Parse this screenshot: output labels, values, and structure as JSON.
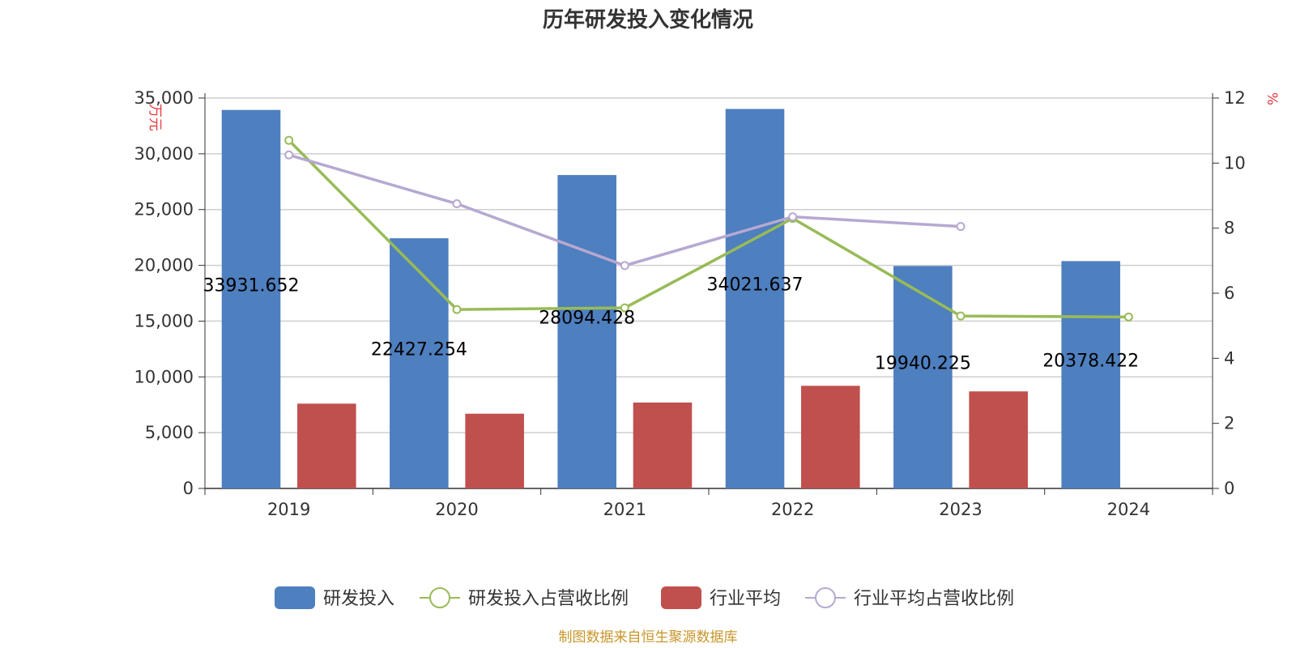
{
  "chart_data": {
    "type": "bar",
    "title": "历年研发投入变化情况",
    "categories": [
      "2019",
      "2020",
      "2021",
      "2022",
      "2023",
      "2024"
    ],
    "y_left": {
      "unit": "万元",
      "min": 0,
      "max": 35000,
      "ticks": [
        "0",
        "5,000",
        "10,000",
        "15,000",
        "20,000",
        "25,000",
        "30,000",
        "35,000"
      ]
    },
    "y_right": {
      "unit": "%",
      "min": 0,
      "max": 12,
      "ticks": [
        "0",
        "2",
        "4",
        "6",
        "8",
        "10",
        "12"
      ]
    },
    "series": [
      {
        "name": "研发投入",
        "kind": "bar",
        "axis": "left",
        "color": "#4e7fbf",
        "values": [
          33931.652,
          22427.254,
          28094.428,
          34021.637,
          19940.225,
          20378.422
        ],
        "labels": [
          "33931.652",
          "22427.254",
          "28094.428",
          "34021.637",
          "19940.225",
          "20378.422"
        ]
      },
      {
        "name": "研发投入占营收比例",
        "kind": "line",
        "axis": "right",
        "color": "#98bb57",
        "values": [
          10.7,
          5.5,
          5.55,
          8.3,
          5.3,
          5.27
        ]
      },
      {
        "name": "行业平均",
        "kind": "bar",
        "axis": "left",
        "color": "#c0504d",
        "values": [
          7600,
          6700,
          7700,
          9200,
          8700,
          null
        ]
      },
      {
        "name": "行业平均占营收比例",
        "kind": "line",
        "axis": "right",
        "color": "#b7a8d1",
        "values": [
          10.25,
          8.75,
          6.85,
          8.35,
          8.05,
          null
        ]
      }
    ],
    "legend_position": "bottom",
    "grid": true,
    "source_note": "制图数据来自恒生聚源数据库"
  }
}
